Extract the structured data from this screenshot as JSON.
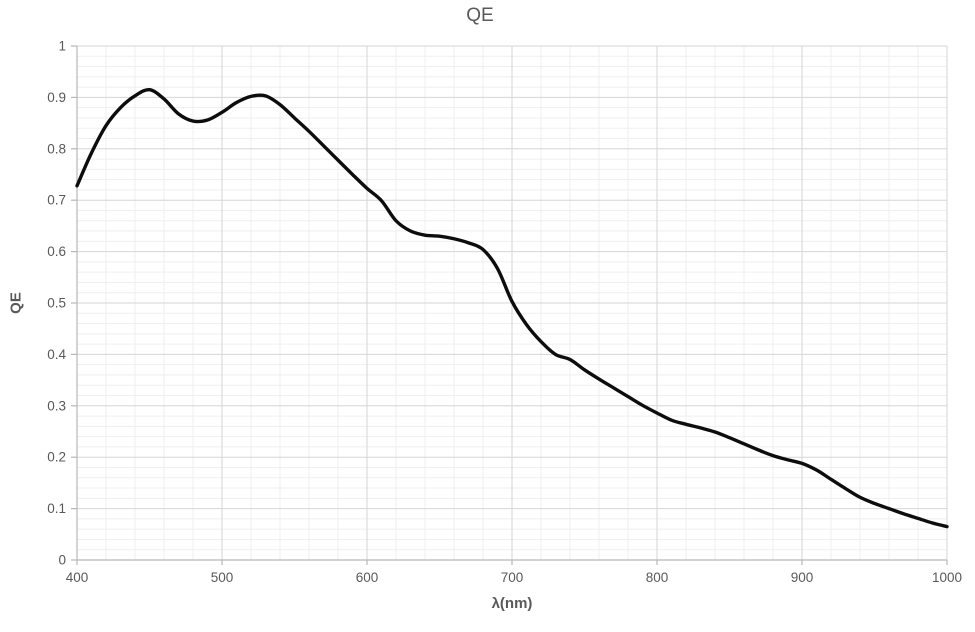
{
  "title": "QE",
  "colors": {
    "background": "#ffffff",
    "line": "#0d0d0d",
    "grid_major": "#d6d6d6",
    "grid_minor": "#efefef",
    "axis": "#b7b7b7",
    "tick": "#b7b7b7",
    "text": "#595959"
  },
  "chart_data": {
    "type": "line",
    "title": "QE",
    "xlabel": "λ(nm)",
    "ylabel": "QE",
    "xlim": [
      400,
      1000
    ],
    "ylim": [
      0,
      1
    ],
    "grid": "major+minor",
    "legend": "none",
    "x_minor_step": 20,
    "y_minor_step": 0.02,
    "x_ticks": {
      "values": [
        400,
        500,
        600,
        700,
        800,
        900,
        1000
      ],
      "labels": [
        "400",
        "500",
        "600",
        "700",
        "800",
        "900",
        "1000"
      ]
    },
    "y_ticks": {
      "values": [
        0,
        0.1,
        0.2,
        0.3,
        0.4,
        0.5,
        0.6,
        0.7,
        0.8,
        0.9,
        1
      ],
      "labels": [
        "0",
        "0.1",
        "0.2",
        "0.3",
        "0.4",
        "0.5",
        "0.6",
        "0.7",
        "0.8",
        "0.9",
        "1"
      ]
    },
    "series": [
      {
        "name": "QE",
        "color": "#0d0d0d",
        "width": 3.4,
        "x": [
          400,
          410,
          420,
          430,
          440,
          450,
          460,
          470,
          480,
          490,
          500,
          510,
          520,
          530,
          540,
          550,
          560,
          570,
          580,
          590,
          600,
          610,
          620,
          630,
          640,
          650,
          660,
          670,
          680,
          690,
          700,
          710,
          720,
          730,
          740,
          750,
          760,
          770,
          780,
          790,
          800,
          810,
          820,
          830,
          840,
          850,
          860,
          870,
          880,
          890,
          900,
          910,
          920,
          930,
          940,
          950,
          960,
          970,
          980,
          990,
          1000
        ],
        "y": [
          0.728,
          0.792,
          0.845,
          0.88,
          0.903,
          0.915,
          0.897,
          0.868,
          0.854,
          0.856,
          0.871,
          0.89,
          0.902,
          0.903,
          0.886,
          0.86,
          0.834,
          0.806,
          0.778,
          0.75,
          0.723,
          0.699,
          0.66,
          0.64,
          0.632,
          0.63,
          0.625,
          0.617,
          0.604,
          0.567,
          0.503,
          0.458,
          0.425,
          0.4,
          0.39,
          0.37,
          0.352,
          0.335,
          0.318,
          0.301,
          0.286,
          0.272,
          0.264,
          0.257,
          0.249,
          0.238,
          0.226,
          0.214,
          0.203,
          0.195,
          0.188,
          0.175,
          0.157,
          0.139,
          0.122,
          0.11,
          0.1,
          0.09,
          0.081,
          0.072,
          0.065
        ]
      }
    ]
  }
}
